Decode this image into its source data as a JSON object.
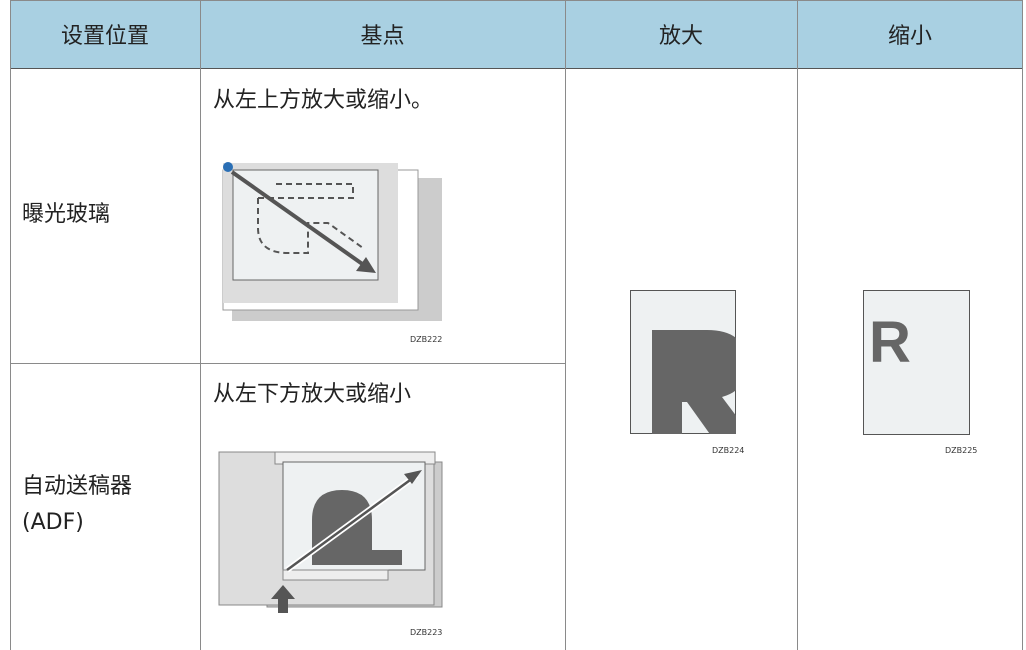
{
  "table": {
    "header": [
      "设置位置",
      "基点",
      "放大",
      "缩小"
    ],
    "rows": [
      {
        "position": "曝光玻璃",
        "base_point": "从左上方放大或缩小。",
        "figure": "DZB222"
      },
      {
        "position": [
          "自动送稿器",
          "(ADF)"
        ],
        "base_point": "从左下方放大或缩小",
        "figure": "DZB223"
      }
    ],
    "enlarge_figure": "DZB224",
    "reduce_figure": "DZB225"
  }
}
